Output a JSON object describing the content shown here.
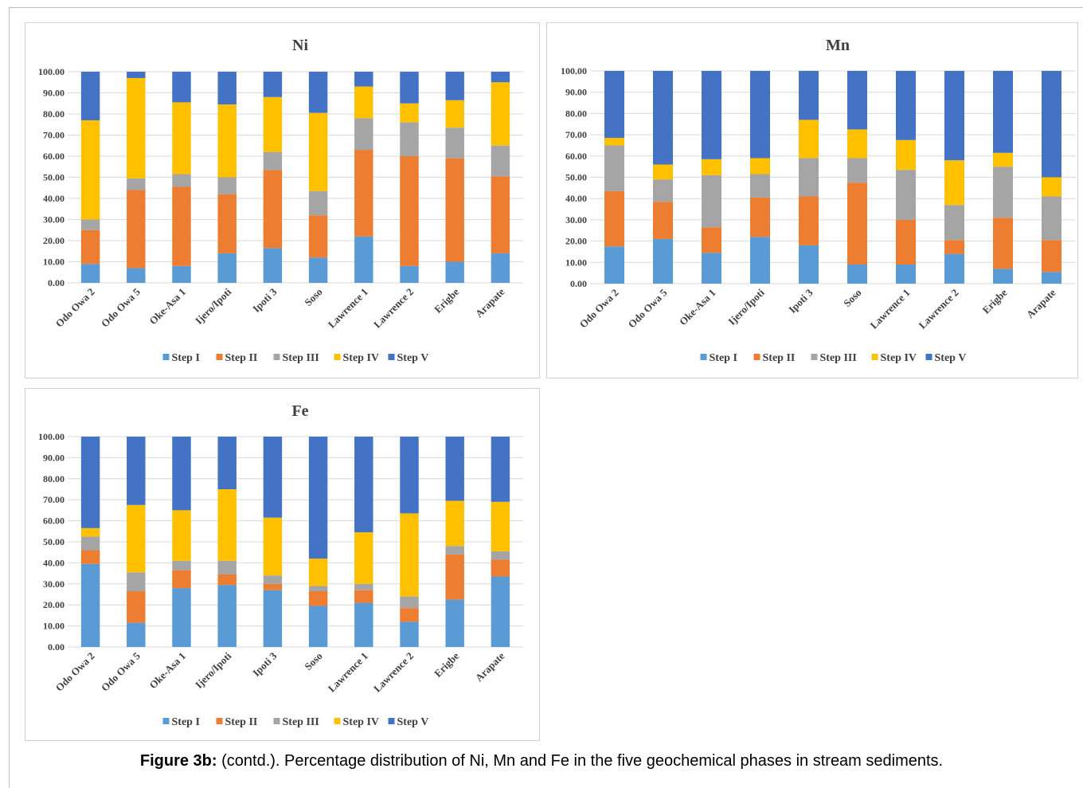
{
  "caption": {
    "label": "Figure 3b:",
    "text": " (contd.). Percentage distribution of Ni, Mn and Fe in the five geochemical phases in stream sediments."
  },
  "colors": {
    "Step I": "#5b9bd5",
    "Step II": "#ed7d31",
    "Step III": "#a5a5a5",
    "Step IV": "#ffc000",
    "Step V": "#4472c4",
    "grid": "#d9d9d9",
    "text": "#404040"
  },
  "chart_data": [
    {
      "type": "bar",
      "stacked": true,
      "title": "Ni",
      "xlabel": "",
      "ylabel": "",
      "ylim": [
        0,
        100
      ],
      "yticks": [
        "0.00",
        "10.00",
        "20.00",
        "30.00",
        "40.00",
        "50.00",
        "60.00",
        "70.00",
        "80.00",
        "90.00",
        "100.00"
      ],
      "grid": true,
      "legend": "bottom",
      "categories": [
        "Odo Owa 2",
        "Odo Owa 5",
        "Oke-Asa 1",
        "Ijero/Ipoti",
        "Ipoti 3",
        "Soso",
        "Lawrence 1",
        "Lawrence 2",
        "Erigbe",
        "Arapate"
      ],
      "series": [
        {
          "name": "Step I",
          "values": [
            9,
            7,
            8,
            14,
            16.5,
            12,
            22,
            8,
            10,
            14
          ]
        },
        {
          "name": "Step II",
          "values": [
            16,
            37,
            37.5,
            28,
            37,
            20,
            41,
            52,
            49,
            36.5
          ]
        },
        {
          "name": "Step III",
          "values": [
            5,
            5.5,
            6,
            8,
            8.5,
            11.5,
            15,
            16,
            14.5,
            14.5
          ]
        },
        {
          "name": "Step IV",
          "values": [
            47,
            47.5,
            34,
            34.5,
            26,
            37,
            15,
            9,
            13,
            30
          ]
        },
        {
          "name": "Step V",
          "values": [
            23,
            3,
            14.5,
            15.5,
            12,
            19.5,
            7,
            15,
            13.5,
            5
          ]
        }
      ]
    },
    {
      "type": "bar",
      "stacked": true,
      "title": "Mn",
      "xlabel": "",
      "ylabel": "",
      "ylim": [
        0,
        100
      ],
      "yticks": [
        "0.00",
        "10.00",
        "20.00",
        "30.00",
        "40.00",
        "50.00",
        "60.00",
        "70.00",
        "80.00",
        "90.00",
        "100.00"
      ],
      "grid": true,
      "legend": "bottom",
      "categories": [
        "Odo Owa 2",
        "Odo Owa 5",
        "Oke-Asa 1",
        "Ijero/Ipoti",
        "Ipoti 3",
        "Soso",
        "Lawrence 1",
        "Lawrence 2",
        "Erigbe",
        "Arapate"
      ],
      "series": [
        {
          "name": "Step I",
          "values": [
            17.5,
            21,
            14.5,
            22,
            18,
            9,
            9,
            14,
            7,
            5.5
          ]
        },
        {
          "name": "Step II",
          "values": [
            26,
            17.5,
            12,
            18.5,
            23,
            38.5,
            21,
            6.5,
            24,
            15
          ]
        },
        {
          "name": "Step III",
          "values": [
            21.5,
            10.5,
            24.5,
            11,
            18,
            11.5,
            23.5,
            16.5,
            24,
            20.5
          ]
        },
        {
          "name": "Step IV",
          "values": [
            3.5,
            7,
            7.5,
            7.5,
            18,
            13.5,
            14,
            21,
            6.5,
            9
          ]
        },
        {
          "name": "Step V",
          "values": [
            31.5,
            44,
            41.5,
            41,
            23,
            27.5,
            32.5,
            42,
            38.5,
            50
          ]
        }
      ]
    },
    {
      "type": "bar",
      "stacked": true,
      "title": "Fe",
      "xlabel": "",
      "ylabel": "",
      "ylim": [
        0,
        100
      ],
      "yticks": [
        "0.00",
        "10.00",
        "20.00",
        "30.00",
        "40.00",
        "50.00",
        "60.00",
        "70.00",
        "80.00",
        "90.00",
        "100.00"
      ],
      "grid": true,
      "legend": "bottom",
      "categories": [
        "Odo Owa 2",
        "Odo Owa 5",
        "Oke-Asa 1",
        "Ijero/Ipoti",
        "Ipoti 3",
        "Soso",
        "Lawrence 1",
        "Lawrence 2",
        "Erigbe",
        "Arapate"
      ],
      "series": [
        {
          "name": "Step I",
          "values": [
            39.5,
            11.5,
            28,
            29.5,
            27,
            19.5,
            21,
            12,
            22.5,
            33.5
          ]
        },
        {
          "name": "Step II",
          "values": [
            6.5,
            15,
            8.5,
            5,
            3,
            7,
            6,
            6.5,
            21.5,
            8
          ]
        },
        {
          "name": "Step III",
          "values": [
            6.5,
            9,
            4.5,
            6.5,
            4,
            2.5,
            3,
            5.5,
            4,
            4
          ]
        },
        {
          "name": "Step IV",
          "values": [
            4,
            32,
            24,
            34,
            27.5,
            13,
            24.5,
            39.5,
            21.5,
            23.5
          ]
        },
        {
          "name": "Step V",
          "values": [
            43.5,
            32.5,
            35,
            25,
            38.5,
            58,
            45.5,
            36.5,
            30.5,
            31
          ]
        }
      ]
    }
  ]
}
